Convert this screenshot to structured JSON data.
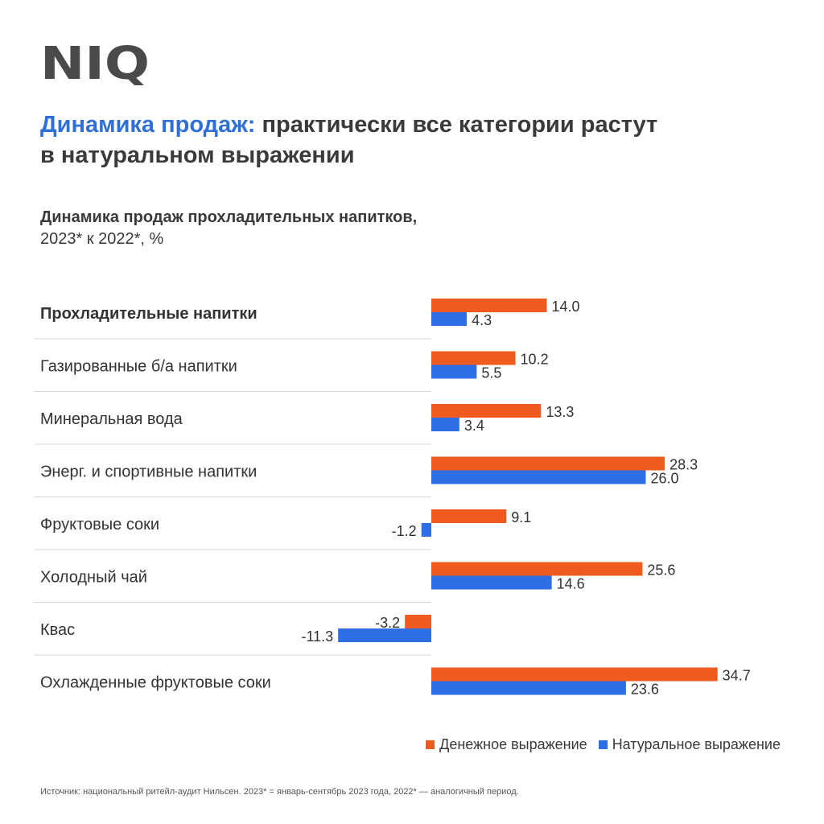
{
  "brand": {
    "logo_text": "NIQ",
    "logo_color": "#4a4a4a"
  },
  "headline": {
    "accent": "Динамика продаж:",
    "line1_rest": "практически все категории растут",
    "line2": "в натуральном выражении"
  },
  "colors": {
    "accent_blue": "#2f6fd8",
    "money": "#ef5a1e",
    "volume": "#2f6fe6",
    "text": "#3a3a3a",
    "divider": "#d8d8d8"
  },
  "chart_data": {
    "type": "bar",
    "orientation": "horizontal",
    "title": "Динамика продаж прохладительных напитков,",
    "subtitle": "2023* к 2022*, %",
    "categories": [
      "Прохладительные напитки",
      "Газированные б/а напитки",
      "Минеральная вода",
      "Энерг. и спортивные напитки",
      "Фруктовые соки",
      "Холодный чай",
      "Квас",
      "Охлажденные фруктовые соки"
    ],
    "bold_categories": [
      0
    ],
    "series": [
      {
        "name": "Денежное выражение",
        "color": "#ef5a1e",
        "values": [
          14.0,
          10.2,
          13.3,
          28.3,
          9.1,
          25.6,
          -3.2,
          34.7
        ]
      },
      {
        "name": "Натуральное выражение",
        "color": "#2f6fe6",
        "values": [
          4.3,
          5.5,
          3.4,
          26.0,
          -1.2,
          14.6,
          -11.3,
          23.6
        ]
      }
    ],
    "data_labels": true,
    "legend_position": "bottom-right",
    "grid": false
  },
  "footnote": "Источник: национальный ритейл-аудит Нильсен. 2023* = январь-сентябрь 2023 года, 2022* — аналогичный период."
}
